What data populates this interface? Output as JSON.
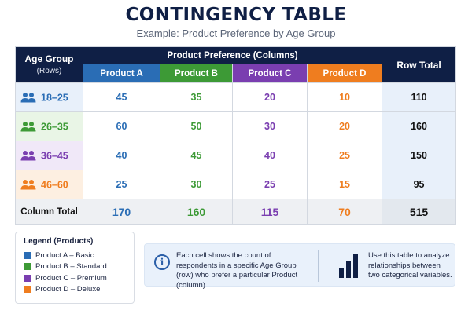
{
  "title": "CONTINGENCY TABLE",
  "subtitle": "Example: Product Preference by Age Group",
  "header": {
    "age_group": "Age Group",
    "rows": "(Rows)",
    "product_preference": "Product Preference (Columns)",
    "row_total": "Row Total"
  },
  "colors": {
    "header_dark": "#0f1f45",
    "product_a": "#2a6db5",
    "product_b": "#3d9a36",
    "product_c": "#7a3eb0",
    "product_d": "#ef7d1f"
  },
  "chart_data": {
    "type": "table",
    "title": "CONTINGENCY TABLE",
    "subtitle": "Example: Product Preference by Age Group",
    "columns": [
      "Product A",
      "Product B",
      "Product C",
      "Product D"
    ],
    "rows": [
      {
        "label": "18–25",
        "values": [
          45,
          35,
          20,
          10
        ],
        "total": 110,
        "icon": "people-icon"
      },
      {
        "label": "26–35",
        "values": [
          60,
          50,
          30,
          20
        ],
        "total": 160,
        "icon": "people-icon"
      },
      {
        "label": "36–45",
        "values": [
          40,
          45,
          40,
          25
        ],
        "total": 150,
        "icon": "people-icon"
      },
      {
        "label": "46–60",
        "values": [
          25,
          30,
          25,
          15
        ],
        "total": 95,
        "icon": "people-icon"
      }
    ],
    "row_colors": [
      "#2a6db5",
      "#3d9a36",
      "#7a3eb0",
      "#ef7d1f"
    ],
    "row_label_bg": [
      "#e8f0fa",
      "#e9f5e6",
      "#f0e8f8",
      "#fdefe1"
    ],
    "column_totals_label": "Column Total",
    "column_totals": [
      170,
      160,
      115,
      70
    ],
    "grand_total": 515
  },
  "legend": {
    "title": "Legend (Products)",
    "items": [
      {
        "label": "Product A – Basic",
        "color": "#2a6db5"
      },
      {
        "label": "Product B – Standard",
        "color": "#3d9a36"
      },
      {
        "label": "Product C – Premium",
        "color": "#7a3eb0"
      },
      {
        "label": "Product D – Deluxe",
        "color": "#ef7d1f"
      }
    ]
  },
  "info": {
    "icon": "info-icon",
    "text": "Each cell shows the count of respondents in a specific Age Group (row) who prefer a particular Product (column).",
    "tip_icon": "bar-chart-icon",
    "tip": "Use this table to analyze relationships between two categorical variables."
  }
}
